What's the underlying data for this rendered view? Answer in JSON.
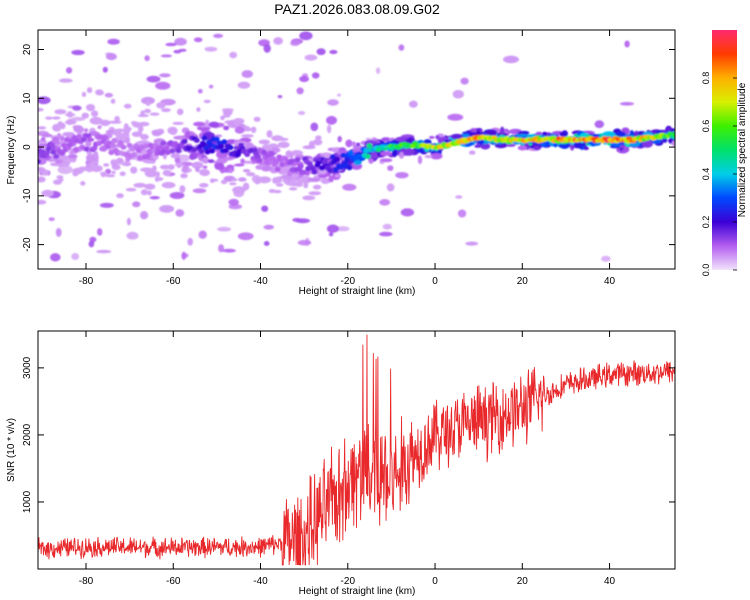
{
  "title": "PAZ1.2026.083.08.09.G02",
  "colors": {
    "snr_line": "#e8282a",
    "axis": "#000000"
  },
  "chart_data": [
    {
      "type": "heatmap",
      "name": "spectrogram",
      "xlabel": "Height of straight line (km)",
      "ylabel": "Frequency (Hz)",
      "xlim": [
        -91,
        55
      ],
      "ylim": [
        -25,
        24
      ],
      "xticks": [
        -80,
        -60,
        -40,
        -20,
        0,
        20,
        40
      ],
      "yticks": [
        -20,
        -10,
        0,
        10,
        20
      ],
      "ridge": {
        "x": [
          -90,
          -85,
          -80,
          -75,
          -70,
          -65,
          -60,
          -55,
          -50,
          -45,
          -40,
          -35,
          -30,
          -25,
          -20,
          -15,
          -10,
          -5,
          0,
          5,
          10,
          15,
          20,
          25,
          30,
          35,
          40,
          45,
          50,
          55
        ],
        "freq": [
          -1.5,
          0,
          1,
          0.5,
          -1,
          -0.5,
          0,
          0.5,
          0.5,
          -1,
          -2,
          -3.5,
          -4,
          -3.5,
          -3,
          -0.5,
          0,
          0.5,
          0,
          1,
          2,
          1.5,
          1.5,
          1.5,
          1.5,
          1.5,
          1.5,
          1.5,
          2,
          2.5
        ],
        "amplitude": [
          0.15,
          0.1,
          0.12,
          0.1,
          0.08,
          0.1,
          0.12,
          0.2,
          0.25,
          0.2,
          0.12,
          0.1,
          0.15,
          0.2,
          0.3,
          0.45,
          0.55,
          0.6,
          0.7,
          0.75,
          0.8,
          0.7,
          0.75,
          0.8,
          0.85,
          0.85,
          0.9,
          0.85,
          0.7,
          0.55
        ],
        "spread_hz": [
          6,
          6,
          6,
          6,
          6,
          6,
          5,
          5,
          5,
          5,
          4,
          4,
          3.5,
          3,
          2.5,
          1.5,
          1.2,
          1,
          1,
          1,
          1,
          1,
          1,
          1,
          1,
          1,
          1,
          1,
          1,
          1
        ]
      }
    },
    {
      "type": "colorbar",
      "name": "amplitude-colorbar",
      "label": "Normalized spectral amplitude",
      "range": [
        0,
        1
      ],
      "ticks": [
        "0.0",
        "0.2",
        "0.4",
        "0.6",
        "0.8"
      ],
      "tick_values": [
        0,
        0.2,
        0.4,
        0.6,
        0.8
      ]
    },
    {
      "type": "line",
      "name": "snr",
      "xlabel": "Height of straight line (km)",
      "ylabel": "SNR (10 * v/v)",
      "xlim": [
        -91,
        55
      ],
      "ylim": [
        0,
        3550
      ],
      "xticks": [
        -80,
        -60,
        -40,
        -20,
        0,
        20,
        40
      ],
      "yticks": [
        1000,
        2000,
        3000
      ],
      "trend": {
        "x": [
          -91,
          -80,
          -60,
          -40,
          -30,
          -25,
          -20,
          -15,
          -10,
          -5,
          0,
          10,
          20,
          30,
          40,
          55
        ],
        "y": [
          300,
          330,
          320,
          330,
          450,
          900,
          1300,
          1500,
          1300,
          1700,
          2000,
          2200,
          2400,
          2750,
          2900,
          2950
        ]
      }
    }
  ]
}
